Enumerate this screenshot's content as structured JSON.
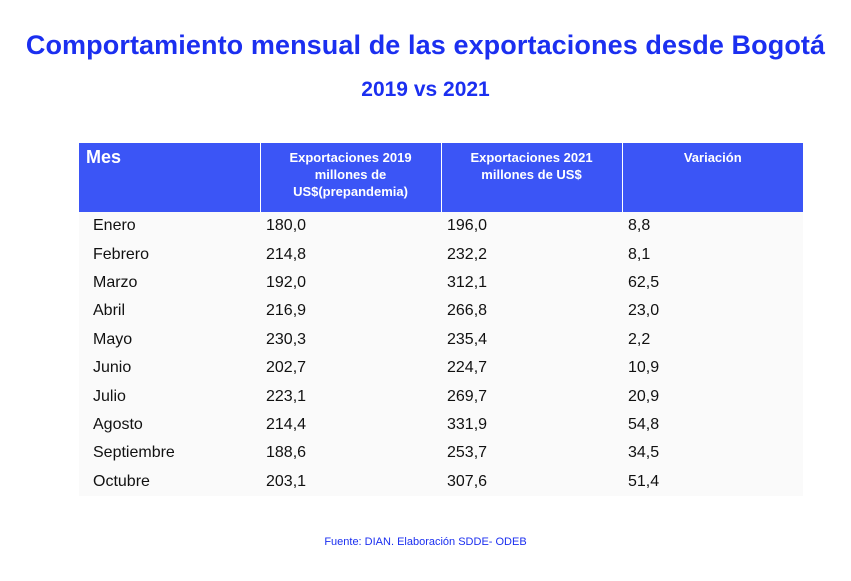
{
  "title": "Comportamiento mensual de las exportaciones desde Bogotá",
  "subtitle": "2019 vs 2021",
  "source": "Fuente: DIAN. Elaboración SDDE- ODEB",
  "colors": {
    "accent": "#1b2ff0",
    "header_bg": "#3b55f6"
  },
  "chart_data": {
    "type": "table",
    "title": "Comportamiento mensual de las exportaciones desde Bogotá",
    "subtitle": "2019 vs 2021",
    "columns": [
      "Mes",
      "Exportaciones 2019 millones de US$(prepandemia)",
      "Exportaciones 2021 millones de US$",
      "Variación"
    ],
    "rows": [
      [
        "Enero",
        "180,0",
        "196,0",
        "8,8"
      ],
      [
        "Febrero",
        "214,8",
        "232,2",
        "8,1"
      ],
      [
        "Marzo",
        "192,0",
        "312,1",
        "62,5"
      ],
      [
        "Abril",
        "216,9",
        "266,8",
        "23,0"
      ],
      [
        "Mayo",
        "230,3",
        "235,4",
        "2,2"
      ],
      [
        "Junio",
        "202,7",
        "224,7",
        "10,9"
      ],
      [
        "Julio",
        "223,1",
        "269,7",
        "20,9"
      ],
      [
        "Agosto",
        "214,4",
        "331,9",
        "54,8"
      ],
      [
        "Septiembre",
        "188,6",
        "253,7",
        "34,5"
      ],
      [
        "Octubre",
        "203,1",
        "307,6",
        "51,4"
      ]
    ]
  }
}
